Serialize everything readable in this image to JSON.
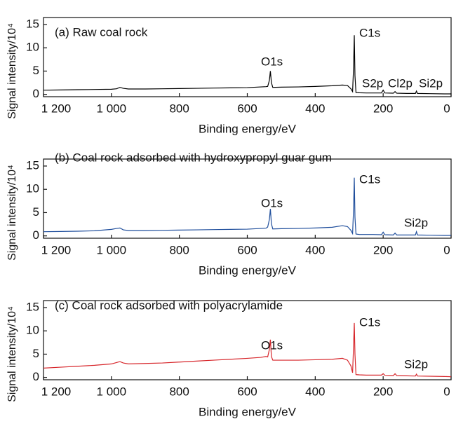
{
  "chart_data": [
    {
      "type": "line",
      "title": "(a) Raw coal rock",
      "x_label": "Binding energy/eV",
      "y_label": "Signal intensity/10⁴",
      "color": "#000000",
      "x": [
        1200,
        1150,
        1100,
        1050,
        1000,
        985,
        975,
        965,
        950,
        900,
        850,
        800,
        750,
        700,
        650,
        600,
        560,
        545,
        540,
        535,
        532,
        529,
        525,
        500,
        450,
        400,
        350,
        320,
        305,
        295,
        290,
        287,
        285,
        283,
        280,
        270,
        250,
        230,
        205,
        200,
        195,
        170,
        165,
        160,
        130,
        105,
        102,
        99,
        60,
        20,
        0
      ],
      "values": [
        0.9,
        0.95,
        1.0,
        1.05,
        1.1,
        1.2,
        1.5,
        1.3,
        1.15,
        1.15,
        1.2,
        1.25,
        1.3,
        1.35,
        1.4,
        1.45,
        1.6,
        1.65,
        1.7,
        3.0,
        5.0,
        2.5,
        1.5,
        1.55,
        1.6,
        1.7,
        1.85,
        2.0,
        1.9,
        1.2,
        0.6,
        6.0,
        12.7,
        4.0,
        0.4,
        0.35,
        0.3,
        0.3,
        0.3,
        0.9,
        0.3,
        0.25,
        0.6,
        0.25,
        0.2,
        0.2,
        0.7,
        0.2,
        0.15,
        0.1,
        0.1
      ],
      "annotations": [
        "O1s",
        "C1s",
        "S2p",
        "Cl2p",
        "Si2p"
      ],
      "xlim": [
        1200,
        0
      ],
      "xticks": [
        {
          "value": 1200,
          "label": "1 200"
        },
        {
          "value": 1000,
          "label": "1 000"
        },
        800,
        600,
        400,
        200,
        0
      ],
      "ylim": [
        -0.5,
        16.5
      ],
      "yticks": [
        0,
        5,
        10,
        15
      ]
    },
    {
      "type": "line",
      "title": "(b) Coal rock adsorbed with hydroxypropyl guar gum",
      "x_label": "Binding energy/eV",
      "y_label": "Signal intensity/10⁴",
      "color": "#1f4e9c",
      "x": [
        1200,
        1150,
        1100,
        1050,
        1000,
        985,
        975,
        965,
        950,
        900,
        850,
        800,
        750,
        700,
        650,
        600,
        560,
        545,
        540,
        535,
        532,
        529,
        525,
        500,
        450,
        400,
        350,
        320,
        305,
        295,
        290,
        287,
        285,
        283,
        280,
        270,
        250,
        230,
        205,
        200,
        195,
        170,
        165,
        160,
        130,
        105,
        102,
        99,
        60,
        20,
        0
      ],
      "values": [
        0.9,
        0.95,
        1.0,
        1.1,
        1.4,
        1.6,
        1.7,
        1.3,
        1.15,
        1.15,
        1.2,
        1.25,
        1.3,
        1.35,
        1.4,
        1.45,
        1.6,
        1.65,
        1.9,
        3.5,
        5.8,
        2.6,
        1.5,
        1.55,
        1.6,
        1.7,
        1.85,
        2.2,
        2.0,
        1.2,
        0.5,
        6.0,
        12.5,
        4.0,
        0.4,
        0.3,
        0.3,
        0.3,
        0.25,
        0.8,
        0.25,
        0.2,
        0.6,
        0.2,
        0.2,
        0.2,
        0.9,
        0.2,
        0.15,
        0.1,
        0.1
      ],
      "annotations": [
        "O1s",
        "C1s",
        "Si2p"
      ],
      "xlim": [
        1200,
        0
      ],
      "xticks": [
        {
          "value": 1200,
          "label": "1 200"
        },
        {
          "value": 1000,
          "label": "1 000"
        },
        800,
        600,
        400,
        200,
        0
      ],
      "ylim": [
        -0.5,
        16.5
      ],
      "yticks": [
        0,
        5,
        10,
        15
      ]
    },
    {
      "type": "line",
      "title": "(c) Coal rock adsorbed with polyacrylamide",
      "x_label": "Binding energy/eV",
      "y_label": "Signal intensity/10⁴",
      "color": "#d7262b",
      "x": [
        1200,
        1150,
        1100,
        1050,
        1000,
        985,
        975,
        965,
        950,
        900,
        850,
        800,
        750,
        700,
        650,
        600,
        560,
        545,
        540,
        535,
        532,
        529,
        525,
        500,
        450,
        400,
        350,
        320,
        305,
        295,
        290,
        287,
        285,
        283,
        280,
        270,
        250,
        230,
        205,
        200,
        195,
        170,
        165,
        160,
        130,
        105,
        102,
        99,
        60,
        20,
        0
      ],
      "values": [
        2.0,
        2.2,
        2.4,
        2.6,
        2.9,
        3.2,
        3.4,
        3.1,
        2.9,
        3.0,
        3.1,
        3.3,
        3.5,
        3.7,
        3.9,
        4.1,
        4.3,
        4.5,
        4.4,
        6.0,
        8.1,
        4.5,
        3.7,
        3.7,
        3.7,
        3.8,
        3.9,
        4.1,
        3.7,
        2.5,
        1.0,
        7.0,
        11.7,
        5.0,
        0.6,
        0.55,
        0.5,
        0.5,
        0.5,
        0.8,
        0.45,
        0.4,
        0.8,
        0.4,
        0.35,
        0.3,
        0.7,
        0.3,
        0.25,
        0.2,
        0.15
      ],
      "annotations": [
        "O1s",
        "C1s",
        "Si2p"
      ],
      "xlim": [
        1200,
        0
      ],
      "xticks": [
        {
          "value": 1200,
          "label": "1 200"
        },
        {
          "value": 1000,
          "label": "1 000"
        },
        800,
        600,
        400,
        200,
        0
      ],
      "ylim": [
        -0.5,
        16.5
      ],
      "yticks": [
        0,
        5,
        10,
        15
      ]
    }
  ]
}
